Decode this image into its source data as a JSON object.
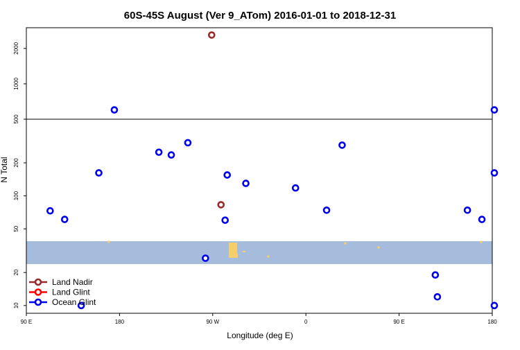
{
  "chart_data": {
    "type": "scatter",
    "title": "60S-45S August (Ver 9_ATom)   2016-01-01 to 2018-12-31",
    "xlabel": "Longitude (deg E)",
    "ylabel": "N Total",
    "x_ticks": [
      {
        "value": 90,
        "label": "90 E"
      },
      {
        "value": 180,
        "label": "180"
      },
      {
        "value": 270,
        "label": "90 W"
      },
      {
        "value": 360,
        "label": "0"
      },
      {
        "value": 450,
        "label": "90 E"
      },
      {
        "value": 540,
        "label": "180"
      }
    ],
    "xlim": [
      90,
      540
    ],
    "y_ticks_lower": [
      10,
      20,
      50,
      100,
      200,
      500
    ],
    "y_ticks_upper": [
      500,
      1000,
      2000
    ],
    "ylim_lower": [
      8.5,
      500
    ],
    "ylim_upper": [
      500,
      3000
    ],
    "ylog": true,
    "split_at": 500,
    "legend_position": "bottom-left",
    "map_strip": {
      "lat_range": "60S-45S",
      "ocean_color": "#a6bcdc",
      "land_color": "#f5cf6b"
    },
    "series": [
      {
        "name": "Land Nadir",
        "color": "#9a2a2a",
        "points": [
          [
            269,
            2600
          ],
          [
            278,
            83
          ]
        ]
      },
      {
        "name": "Land Glint",
        "color": "#ff0000",
        "points": []
      },
      {
        "name": "Ocean Glint",
        "color": "#0000ee",
        "points": [
          [
            113,
            73
          ],
          [
            127,
            61
          ],
          [
            143,
            10
          ],
          [
            160,
            162
          ],
          [
            175,
            600
          ],
          [
            218,
            250
          ],
          [
            230,
            236
          ],
          [
            246,
            305
          ],
          [
            263,
            27
          ],
          [
            282,
            60
          ],
          [
            284,
            155
          ],
          [
            302,
            130
          ],
          [
            350,
            118
          ],
          [
            380,
            74
          ],
          [
            395,
            290
          ],
          [
            487,
            12
          ],
          [
            485,
            19
          ],
          [
            516,
            74
          ],
          [
            530,
            61
          ],
          [
            546,
            10
          ],
          [
            564,
            162
          ],
          [
            577,
            600
          ]
        ]
      }
    ]
  }
}
